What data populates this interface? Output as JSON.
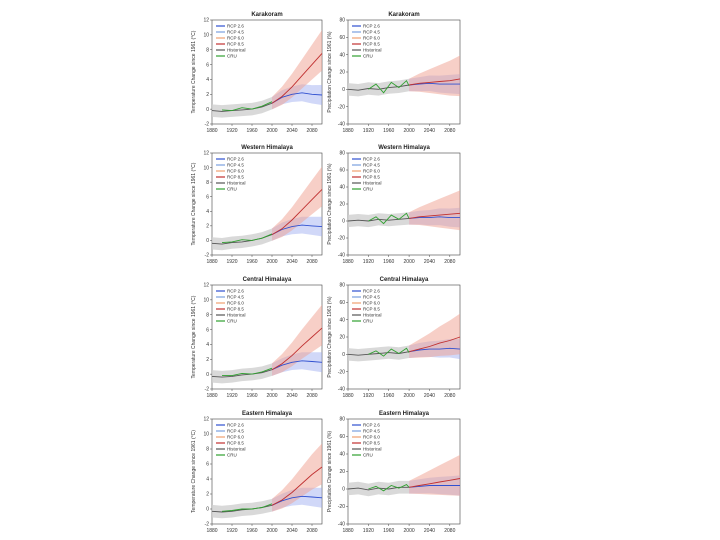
{
  "legend_labels": [
    "RCP 2.6",
    "RCP 4.5",
    "RCP 6.0",
    "RCP 8.5",
    "Historical",
    "CRU"
  ],
  "legend_colors": [
    "#3050d0",
    "#7aa0e0",
    "#f0a070",
    "#c03030",
    "#555555",
    "#30a030"
  ],
  "chart_data": [
    {
      "type": "line",
      "title": "Karakoram",
      "ylabel": "Temperature Change since 1961 (°C)",
      "xlim": [
        1880,
        2100
      ],
      "ylim": [
        -2,
        12
      ],
      "xticks": [
        "1880",
        "1920",
        "1960",
        "2000",
        "2040",
        "2080"
      ],
      "yticks": [
        "-2",
        "0",
        "2",
        "4",
        "6",
        "8",
        "10",
        "12"
      ],
      "series": [
        {
          "name": "Historical",
          "x": [
            1880,
            1900,
            1920,
            1940,
            1960,
            1980,
            2000
          ],
          "y": [
            -0.2,
            -0.3,
            -0.2,
            -0.1,
            0.0,
            0.3,
            0.8
          ]
        },
        {
          "name": "CRU",
          "x": [
            1900,
            1920,
            1940,
            1960,
            1980,
            2000
          ],
          "y": [
            -0.1,
            -0.2,
            0.2,
            0.0,
            0.4,
            1.0
          ]
        },
        {
          "name": "RCP 2.6",
          "x": [
            2000,
            2020,
            2040,
            2060,
            2080,
            2100
          ],
          "y": [
            0.8,
            1.6,
            2.0,
            2.2,
            2.0,
            1.9
          ]
        },
        {
          "name": "RCP 8.5",
          "x": [
            2000,
            2020,
            2040,
            2060,
            2080,
            2100
          ],
          "y": [
            0.8,
            1.7,
            3.0,
            4.5,
            6.0,
            7.5
          ]
        }
      ]
    },
    {
      "type": "line",
      "title": "Karakoram",
      "ylabel": "Precipitation Change since 1961 (%)",
      "xlim": [
        1880,
        2100
      ],
      "ylim": [
        -40,
        80
      ],
      "xticks": [
        "1880",
        "1920",
        "1960",
        "2000",
        "2040",
        "2080"
      ],
      "yticks": [
        "-40",
        "-20",
        "0",
        "20",
        "40",
        "60",
        "80"
      ],
      "series": [
        {
          "name": "Historical",
          "x": [
            1880,
            1900,
            1920,
            1940,
            1960,
            1980,
            2000
          ],
          "y": [
            0,
            -1,
            1,
            0,
            2,
            3,
            5
          ]
        },
        {
          "name": "CRU",
          "x": [
            1920,
            1935,
            1950,
            1965,
            1980,
            1995,
            2000
          ],
          "y": [
            0,
            6,
            -4,
            8,
            2,
            10,
            4
          ]
        },
        {
          "name": "RCP 2.6",
          "x": [
            2000,
            2020,
            2040,
            2060,
            2080,
            2100
          ],
          "y": [
            5,
            6,
            7,
            6,
            6,
            6
          ]
        },
        {
          "name": "RCP 8.5",
          "x": [
            2000,
            2020,
            2040,
            2060,
            2080,
            2100
          ],
          "y": [
            5,
            7,
            8,
            9,
            10,
            12
          ]
        }
      ]
    },
    {
      "type": "line",
      "title": "Western Himalaya",
      "ylabel": "Temperature Change since 1961 (°C)",
      "xlim": [
        1880,
        2100
      ],
      "ylim": [
        -2,
        12
      ],
      "xticks": [
        "1880",
        "1920",
        "1960",
        "2000",
        "2040",
        "2080"
      ],
      "yticks": [
        "-2",
        "0",
        "2",
        "4",
        "6",
        "8",
        "10",
        "12"
      ],
      "series": [
        {
          "name": "Historical",
          "x": [
            1880,
            1900,
            1920,
            1940,
            1960,
            1980,
            2000
          ],
          "y": [
            -0.4,
            -0.5,
            -0.3,
            -0.2,
            0.0,
            0.3,
            0.8
          ]
        },
        {
          "name": "CRU",
          "x": [
            1900,
            1920,
            1940,
            1960,
            1980,
            2000
          ],
          "y": [
            -0.3,
            -0.2,
            0.1,
            0.0,
            0.3,
            0.9
          ]
        },
        {
          "name": "RCP 2.6",
          "x": [
            2000,
            2020,
            2040,
            2060,
            2080,
            2100
          ],
          "y": [
            0.8,
            1.5,
            1.9,
            2.1,
            2.0,
            1.9
          ]
        },
        {
          "name": "RCP 8.5",
          "x": [
            2000,
            2020,
            2040,
            2060,
            2080,
            2100
          ],
          "y": [
            0.8,
            1.6,
            2.8,
            4.2,
            5.6,
            7.0
          ]
        }
      ]
    },
    {
      "type": "line",
      "title": "Western Himalaya",
      "ylabel": "Precipitation Change since 1961 (%)",
      "xlim": [
        1880,
        2100
      ],
      "ylim": [
        -40,
        80
      ],
      "xticks": [
        "1880",
        "1920",
        "1960",
        "2000",
        "2040",
        "2080"
      ],
      "yticks": [
        "-40",
        "-20",
        "0",
        "20",
        "40",
        "60",
        "80"
      ],
      "series": [
        {
          "name": "Historical",
          "x": [
            1880,
            1900,
            1920,
            1940,
            1960,
            1980,
            2000
          ],
          "y": [
            0,
            1,
            0,
            2,
            1,
            2,
            3
          ]
        },
        {
          "name": "CRU",
          "x": [
            1920,
            1935,
            1950,
            1965,
            1980,
            1995,
            2000
          ],
          "y": [
            0,
            5,
            -3,
            7,
            2,
            9,
            3
          ]
        },
        {
          "name": "RCP 2.6",
          "x": [
            2000,
            2020,
            2040,
            2060,
            2080,
            2100
          ],
          "y": [
            3,
            4,
            4,
            5,
            4,
            4
          ]
        },
        {
          "name": "RCP 8.5",
          "x": [
            2000,
            2020,
            2040,
            2060,
            2080,
            2100
          ],
          "y": [
            3,
            5,
            6,
            7,
            8,
            9
          ]
        }
      ]
    },
    {
      "type": "line",
      "title": "Central Himalaya",
      "ylabel": "Temperature Change since 1961 (°C)",
      "xlim": [
        1880,
        2100
      ],
      "ylim": [
        -2,
        12
      ],
      "xticks": [
        "1880",
        "1920",
        "1960",
        "2000",
        "2040",
        "2080"
      ],
      "yticks": [
        "-2",
        "0",
        "2",
        "4",
        "6",
        "8",
        "10",
        "12"
      ],
      "series": [
        {
          "name": "Historical",
          "x": [
            1880,
            1900,
            1920,
            1940,
            1960,
            1980,
            2000
          ],
          "y": [
            -0.3,
            -0.4,
            -0.3,
            -0.1,
            0.0,
            0.2,
            0.6
          ]
        },
        {
          "name": "CRU",
          "x": [
            1900,
            1920,
            1940,
            1960,
            1980,
            2000
          ],
          "y": [
            -0.2,
            -0.2,
            0.1,
            0.0,
            0.3,
            0.8
          ]
        },
        {
          "name": "RCP 2.6",
          "x": [
            2000,
            2020,
            2040,
            2060,
            2080,
            2100
          ],
          "y": [
            0.6,
            1.2,
            1.6,
            1.8,
            1.7,
            1.6
          ]
        },
        {
          "name": "RCP 8.5",
          "x": [
            2000,
            2020,
            2040,
            2060,
            2080,
            2100
          ],
          "y": [
            0.6,
            1.4,
            2.5,
            3.8,
            5.0,
            6.2
          ]
        }
      ]
    },
    {
      "type": "line",
      "title": "Central Himalaya",
      "ylabel": "Precipitation Change since 1961 (%)",
      "xlim": [
        1880,
        2100
      ],
      "ylim": [
        -40,
        80
      ],
      "xticks": [
        "1880",
        "1920",
        "1960",
        "2000",
        "2040",
        "2080"
      ],
      "yticks": [
        "-40",
        "-20",
        "0",
        "20",
        "40",
        "60",
        "80"
      ],
      "series": [
        {
          "name": "Historical",
          "x": [
            1880,
            1900,
            1920,
            1940,
            1960,
            1980,
            2000
          ],
          "y": [
            0,
            -1,
            0,
            1,
            2,
            1,
            3
          ]
        },
        {
          "name": "CRU",
          "x": [
            1920,
            1935,
            1950,
            1965,
            1980,
            1995,
            2000
          ],
          "y": [
            0,
            4,
            -2,
            6,
            1,
            7,
            2
          ]
        },
        {
          "name": "RCP 2.6",
          "x": [
            2000,
            2020,
            2040,
            2060,
            2080,
            2100
          ],
          "y": [
            3,
            5,
            6,
            6,
            7,
            6
          ]
        },
        {
          "name": "RCP 8.5",
          "x": [
            2000,
            2020,
            2040,
            2060,
            2080,
            2100
          ],
          "y": [
            3,
            6,
            9,
            13,
            16,
            20
          ]
        }
      ]
    },
    {
      "type": "line",
      "title": "Eastern Himalaya",
      "ylabel": "Temperature Change since 1961 (°C)",
      "xlim": [
        1880,
        2100
      ],
      "ylim": [
        -2,
        12
      ],
      "xticks": [
        "1880",
        "1920",
        "1960",
        "2000",
        "2040",
        "2080"
      ],
      "yticks": [
        "-2",
        "0",
        "2",
        "4",
        "6",
        "8",
        "10",
        "12"
      ],
      "series": [
        {
          "name": "Historical",
          "x": [
            1880,
            1900,
            1920,
            1940,
            1960,
            1980,
            2000
          ],
          "y": [
            -0.3,
            -0.4,
            -0.3,
            -0.1,
            0.0,
            0.2,
            0.5
          ]
        },
        {
          "name": "CRU",
          "x": [
            1900,
            1920,
            1940,
            1960,
            1980,
            2000
          ],
          "y": [
            -0.3,
            -0.2,
            0.0,
            0.0,
            0.2,
            0.7
          ]
        },
        {
          "name": "RCP 2.6",
          "x": [
            2000,
            2020,
            2040,
            2060,
            2080,
            2100
          ],
          "y": [
            0.5,
            1.1,
            1.5,
            1.7,
            1.6,
            1.5
          ]
        },
        {
          "name": "RCP 8.5",
          "x": [
            2000,
            2020,
            2040,
            2060,
            2080,
            2100
          ],
          "y": [
            0.5,
            1.2,
            2.2,
            3.4,
            4.6,
            5.6
          ]
        }
      ]
    },
    {
      "type": "line",
      "title": "Eastern Himalaya",
      "ylabel": "Precipitation Change since 1961 (%)",
      "xlim": [
        1880,
        2100
      ],
      "ylim": [
        -40,
        80
      ],
      "xticks": [
        "1880",
        "1920",
        "1960",
        "2000",
        "2040",
        "2080"
      ],
      "yticks": [
        "-40",
        "-20",
        "0",
        "20",
        "40",
        "60",
        "80"
      ],
      "series": [
        {
          "name": "Historical",
          "x": [
            1880,
            1900,
            1920,
            1940,
            1960,
            1980,
            2000
          ],
          "y": [
            0,
            1,
            -1,
            1,
            0,
            2,
            2
          ]
        },
        {
          "name": "CRU",
          "x": [
            1920,
            1935,
            1950,
            1965,
            1980,
            1995,
            2000
          ],
          "y": [
            0,
            3,
            -2,
            4,
            1,
            5,
            2
          ]
        },
        {
          "name": "RCP 2.6",
          "x": [
            2000,
            2020,
            2040,
            2060,
            2080,
            2100
          ],
          "y": [
            2,
            3,
            4,
            4,
            4,
            4
          ]
        },
        {
          "name": "RCP 8.5",
          "x": [
            2000,
            2020,
            2040,
            2060,
            2080,
            2100
          ],
          "y": [
            2,
            4,
            6,
            8,
            10,
            12
          ]
        }
      ]
    }
  ]
}
